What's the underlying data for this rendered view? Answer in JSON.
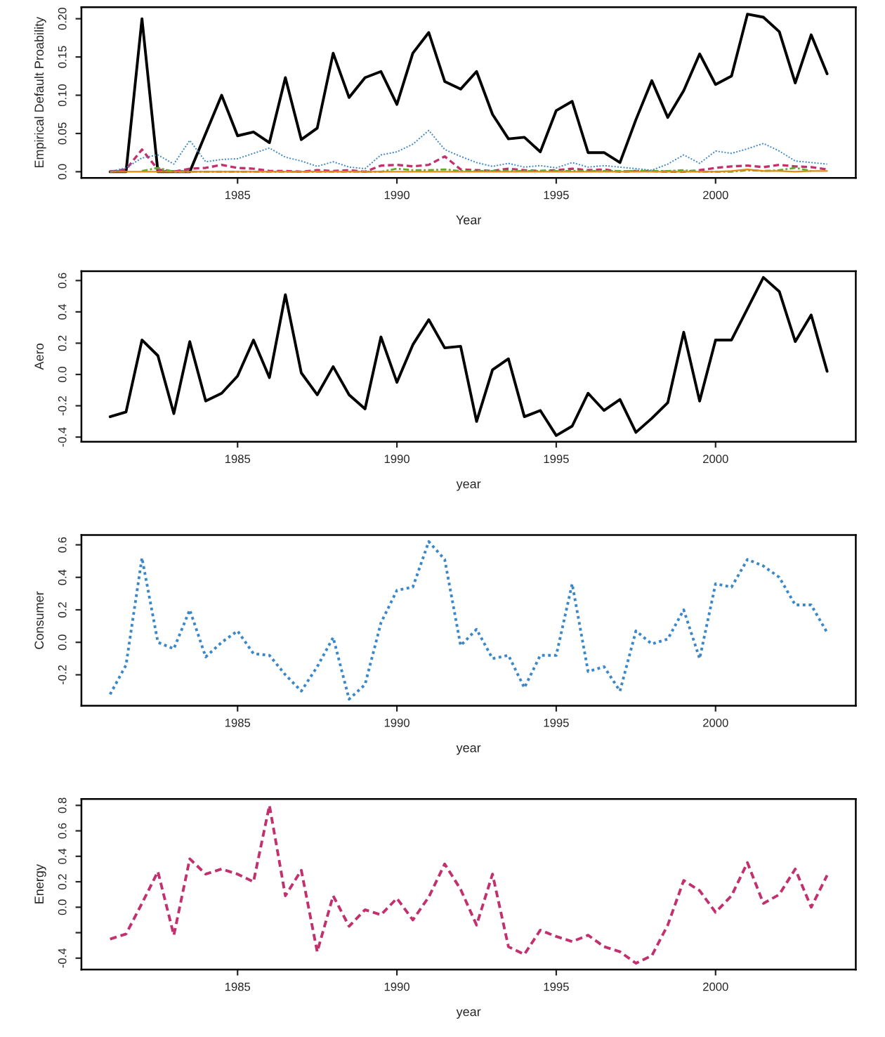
{
  "chart_data": [
    {
      "type": "line",
      "xlabel": "Year",
      "ylabel": "Empirical Default Proability",
      "x": [
        1981,
        1981.5,
        1982,
        1982.5,
        1983,
        1983.5,
        1984,
        1984.5,
        1985,
        1985.5,
        1986,
        1986.5,
        1987,
        1987.5,
        1988,
        1988.5,
        1989,
        1989.5,
        1990,
        1990.5,
        1991,
        1991.5,
        1992,
        1992.5,
        1993,
        1993.5,
        1994,
        1994.5,
        1995,
        1995.5,
        1996,
        1996.5,
        1997,
        1997.5,
        1998,
        1998.5,
        1999,
        1999.5,
        2000,
        2000.5,
        2001,
        2001.5,
        2002,
        2002.5,
        2003,
        2003.5
      ],
      "xlim": [
        1980.1,
        2004.4
      ],
      "xticks": [
        1985,
        1990,
        1995,
        2000
      ],
      "ylim": [
        -0.008,
        0.215
      ],
      "yticks": [
        {
          "value": 0,
          "label": "0.0"
        },
        0.05,
        {
          "value": 0.1,
          "label": "0.10"
        },
        0.15,
        {
          "value": 0.2,
          "label": "0.20"
        }
      ],
      "series": [
        {
          "color": "#000000",
          "line_style": "solid",
          "values": [
            0,
            0,
            0.2,
            0,
            0,
            0,
            0.05,
            0.1,
            0.047,
            0.052,
            0.038,
            0.123,
            0.042,
            0.057,
            0.155,
            0.097,
            0.123,
            0.131,
            0.088,
            0.155,
            0.182,
            0.118,
            0.108,
            0.131,
            0.075,
            0.043,
            0.045,
            0.026,
            0.08,
            0.092,
            0.025,
            0.025,
            0.012,
            0.068,
            0.119,
            0.071,
            0.106,
            0.154,
            0.114,
            0.125,
            0.206,
            0.202,
            0.183,
            0.116,
            0.179,
            0.128
          ]
        },
        {
          "color": "#c2306e",
          "line_style": "dashed",
          "values": [
            0,
            0.003,
            0.029,
            0.003,
            0,
            0.004,
            0.005,
            0.009,
            0.005,
            0.004,
            0.001,
            0.001,
            0,
            0.002,
            0.001,
            0.002,
            0,
            0.008,
            0.009,
            0.007,
            0.009,
            0.02,
            0.003,
            0.002,
            0.001,
            0.004,
            0.002,
            0.001,
            0.002,
            0.004,
            0.002,
            0.003,
            0,
            0.001,
            0.001,
            0,
            0,
            0.002,
            0.005,
            0.007,
            0.008,
            0.006,
            0.009,
            0.007,
            0.006,
            0.003
          ]
        },
        {
          "color": "#5aae2a",
          "line_style": "dashdot",
          "values": [
            null,
            null,
            0.001,
            0.005,
            0,
            null,
            null,
            null,
            null,
            null,
            null,
            null,
            null,
            null,
            null,
            null,
            null,
            0,
            0.004,
            0.002,
            0.002,
            0.003,
            0.001,
            null,
            null,
            null,
            null,
            null,
            null,
            null,
            null,
            null,
            null,
            null,
            null,
            0.001,
            0.002,
            0,
            null,
            0,
            0.002,
            0.001,
            0.002,
            0.005,
            0.001,
            null
          ]
        },
        {
          "color": "#e08a10",
          "line_style": "solid",
          "values": [
            0,
            0,
            0,
            0,
            0,
            0,
            0,
            0,
            0,
            0,
            0,
            0,
            0,
            0,
            0,
            0,
            0,
            0,
            0,
            0,
            0,
            0,
            0,
            0,
            0,
            0,
            0,
            0,
            0,
            0,
            0,
            0,
            0,
            0,
            0,
            0,
            0,
            0,
            0,
            0.001,
            0.003,
            0.001,
            0.001,
            0,
            0.001,
            0.001
          ]
        },
        {
          "color": "#3a87c9",
          "line_style": "dotted",
          "values": [
            0,
            0.005,
            0.018,
            0.022,
            0.01,
            0.041,
            0.013,
            0.016,
            0.017,
            0.024,
            0.031,
            0.019,
            0.014,
            0.007,
            0.013,
            0.006,
            0.004,
            0.022,
            0.026,
            0.036,
            0.054,
            0.029,
            0.02,
            0.012,
            0.007,
            0.011,
            0.006,
            0.008,
            0.005,
            0.012,
            0.006,
            0.008,
            0.006,
            0.004,
            0.002,
            0.01,
            0.022,
            0.011,
            0.027,
            0.024,
            0.03,
            0.037,
            0.027,
            0.014,
            0.012,
            0.01
          ]
        }
      ]
    },
    {
      "type": "line",
      "xlabel": "year",
      "ylabel": "Aero",
      "x": [
        1981,
        1981.5,
        1982,
        1982.5,
        1983,
        1983.5,
        1984,
        1984.5,
        1985,
        1985.5,
        1986,
        1986.5,
        1987,
        1987.5,
        1988,
        1988.5,
        1989,
        1989.5,
        1990,
        1990.5,
        1991,
        1991.5,
        1992,
        1992.5,
        1993,
        1993.5,
        1994,
        1994.5,
        1995,
        1995.5,
        1996,
        1996.5,
        1997,
        1997.5,
        1998,
        1998.5,
        1999,
        1999.5,
        2000,
        2000.5,
        2001,
        2001.5,
        2002,
        2002.5,
        2003,
        2003.5
      ],
      "xlim": [
        1980.1,
        2004.4
      ],
      "xticks": [
        1985,
        1990,
        1995,
        2000
      ],
      "ylim": [
        -0.43,
        0.66
      ],
      "yticks": [
        -0.4,
        -0.2,
        {
          "value": 0,
          "label": "0.0"
        },
        0.2,
        0.4,
        0.6
      ],
      "series": [
        {
          "color": "#000000",
          "line_style": "solid",
          "values": [
            -0.27,
            -0.24,
            0.22,
            0.12,
            -0.25,
            0.21,
            -0.17,
            -0.12,
            -0.01,
            0.22,
            -0.02,
            0.51,
            0.01,
            -0.13,
            0.05,
            -0.13,
            -0.22,
            0.24,
            -0.05,
            0.19,
            0.35,
            0.17,
            0.18,
            -0.3,
            0.03,
            0.1,
            -0.27,
            -0.23,
            -0.39,
            -0.33,
            -0.12,
            -0.23,
            -0.16,
            -0.37,
            -0.28,
            -0.18,
            0.27,
            -0.17,
            0.22,
            0.22,
            0.42,
            0.62,
            0.53,
            0.21,
            0.38,
            0.02
          ]
        }
      ]
    },
    {
      "type": "line",
      "xlabel": "year",
      "ylabel": "Consumer",
      "x": [
        1981,
        1981.5,
        1982,
        1982.5,
        1983,
        1983.5,
        1984,
        1984.5,
        1985,
        1985.5,
        1986,
        1986.5,
        1987,
        1987.5,
        1988,
        1988.5,
        1989,
        1989.5,
        1990,
        1990.5,
        1991,
        1991.5,
        1992,
        1992.5,
        1993,
        1993.5,
        1994,
        1994.5,
        1995,
        1995.5,
        1996,
        1996.5,
        1997,
        1997.5,
        1998,
        1998.5,
        1999,
        1999.5,
        2000,
        2000.5,
        2001,
        2001.5,
        2002,
        2002.5,
        2003,
        2003.5
      ],
      "xlim": [
        1980.1,
        2004.4
      ],
      "xticks": [
        1985,
        1990,
        1995,
        2000
      ],
      "ylim": [
        -0.39,
        0.66
      ],
      "yticks": [
        -0.2,
        {
          "value": 0,
          "label": "0.0"
        },
        0.2,
        0.4,
        0.6
      ],
      "series": [
        {
          "color": "#3a87c9",
          "line_style": "dotted",
          "values": [
            -0.32,
            -0.14,
            0.52,
            0,
            -0.04,
            0.2,
            -0.09,
            0,
            0.07,
            -0.07,
            -0.08,
            -0.2,
            -0.3,
            -0.15,
            0.03,
            -0.35,
            -0.26,
            0.12,
            0.32,
            0.34,
            0.62,
            0.51,
            -0.02,
            0.08,
            -0.1,
            -0.08,
            -0.28,
            -0.08,
            -0.08,
            0.36,
            -0.18,
            -0.15,
            -0.3,
            0.07,
            -0.01,
            0.02,
            0.2,
            -0.1,
            0.36,
            0.34,
            0.51,
            0.47,
            0.4,
            0.23,
            0.23,
            0.06
          ]
        }
      ]
    },
    {
      "type": "line",
      "xlabel": "year",
      "ylabel": "Energy",
      "x": [
        1981,
        1981.5,
        1982,
        1982.5,
        1983,
        1983.5,
        1984,
        1984.5,
        1985,
        1985.5,
        1986,
        1986.5,
        1987,
        1987.5,
        1988,
        1988.5,
        1989,
        1989.5,
        1990,
        1990.5,
        1991,
        1991.5,
        1992,
        1992.5,
        1993,
        1993.5,
        1994,
        1994.5,
        1995,
        1995.5,
        1996,
        1996.5,
        1997,
        1997.5,
        1998,
        1998.5,
        1999,
        1999.5,
        2000,
        2000.5,
        2001,
        2001.5,
        2002,
        2002.5,
        2003,
        2003.5
      ],
      "xlim": [
        1980.1,
        2004.4
      ],
      "xticks": [
        1985,
        1990,
        1995,
        2000
      ],
      "ylim": [
        -0.49,
        0.85
      ],
      "yticks": [
        -0.4,
        {
          "value": -0.2,
          "label": null
        },
        {
          "value": 0,
          "label": "0.0"
        },
        0.2,
        0.4,
        0.6,
        0.8
      ],
      "series": [
        {
          "color": "#c2306e",
          "line_style": "dashed",
          "values": [
            -0.25,
            -0.21,
            0.03,
            0.28,
            -0.22,
            0.38,
            0.26,
            0.3,
            0.26,
            0.2,
            0.8,
            0.09,
            0.29,
            -0.35,
            0.09,
            -0.15,
            -0.02,
            -0.06,
            0.07,
            -0.1,
            0.08,
            0.34,
            0.14,
            -0.14,
            0.26,
            -0.31,
            -0.37,
            -0.18,
            -0.23,
            -0.27,
            -0.22,
            -0.31,
            -0.35,
            -0.44,
            -0.38,
            -0.14,
            0.21,
            0.13,
            -0.04,
            0.09,
            0.35,
            0.03,
            0.1,
            0.3,
            0,
            0.25
          ]
        }
      ]
    }
  ]
}
